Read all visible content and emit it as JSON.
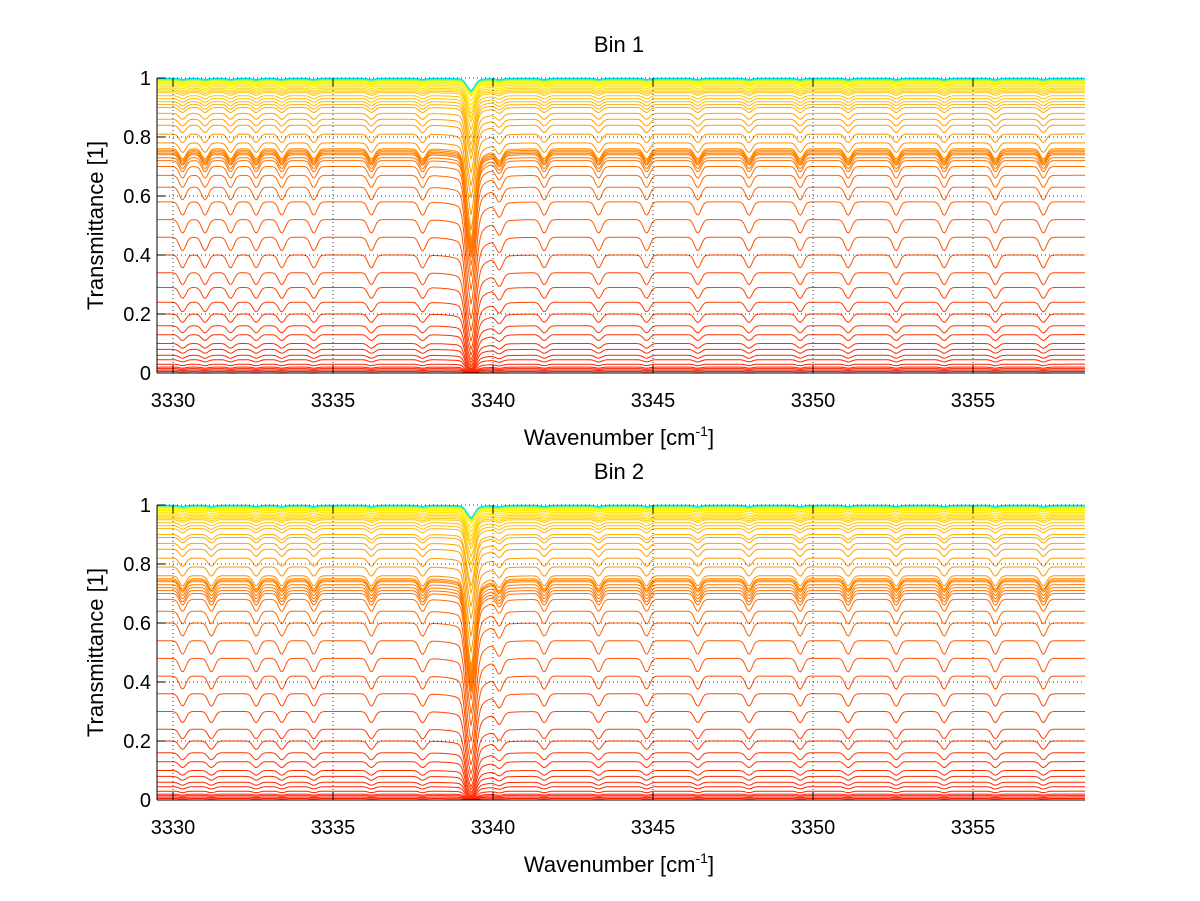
{
  "chart_data": [
    {
      "type": "line",
      "title": "Bin 1",
      "xlabel": "Wavenumber [cm",
      "xlabel_sup": "-1",
      "xlabel_suffix": "]",
      "ylabel": "Transmittance [1]",
      "xlim": [
        3329.5,
        3358.5
      ],
      "ylim": [
        0,
        1
      ],
      "xticks": [
        3330,
        3335,
        3340,
        3345,
        3350,
        3355
      ],
      "xtick_labels": [
        "3330",
        "3335",
        "3340",
        "3345",
        "3350",
        "3355"
      ],
      "yticks": [
        0,
        0.2,
        0.4,
        0.6,
        0.8,
        1
      ],
      "ytick_labels": [
        "0",
        "0.2",
        "0.4",
        "0.6",
        "0.8",
        "1"
      ],
      "grid": true,
      "series_count": 60,
      "baseline_levels": [
        0.005,
        0.01,
        0.015,
        0.02,
        0.03,
        0.045,
        0.06,
        0.08,
        0.1,
        0.13,
        0.16,
        0.2,
        0.24,
        0.29,
        0.34,
        0.4,
        0.46,
        0.52,
        0.58,
        0.63,
        0.67,
        0.7,
        0.72,
        0.73,
        0.74,
        0.745,
        0.75,
        0.755,
        0.76,
        0.78,
        0.81,
        0.84,
        0.86,
        0.88,
        0.9,
        0.91,
        0.92,
        0.93,
        0.94,
        0.95,
        0.955,
        0.96,
        0.965,
        0.97,
        0.975,
        0.98,
        0.983,
        0.986,
        0.989,
        0.991,
        0.993,
        0.995,
        0.996,
        0.997,
        0.998,
        0.999
      ],
      "strong_line_center": 3339.3,
      "weak_line_centers": [
        3330.3,
        3331.0,
        3331.8,
        3332.6,
        3333.4,
        3334.4,
        3336.2,
        3337.8,
        3340.2,
        3341.6,
        3343.3,
        3344.8,
        3346.4,
        3348.0,
        3349.6,
        3351.1,
        3352.6,
        3354.1,
        3355.7,
        3357.2
      ],
      "color_scale": [
        "#ff1a00",
        "#ff6a00",
        "#ff9a00",
        "#ffd000",
        "#ffff00",
        "#00e0ff"
      ]
    },
    {
      "type": "line",
      "title": "Bin 2",
      "xlabel": "Wavenumber [cm",
      "xlabel_sup": "-1",
      "xlabel_suffix": "]",
      "ylabel": "Transmittance [1]",
      "xlim": [
        3329.5,
        3358.5
      ],
      "ylim": [
        0,
        1
      ],
      "xticks": [
        3330,
        3335,
        3340,
        3345,
        3350,
        3355
      ],
      "xtick_labels": [
        "3330",
        "3335",
        "3340",
        "3345",
        "3350",
        "3355"
      ],
      "yticks": [
        0,
        0.2,
        0.4,
        0.6,
        0.8,
        1
      ],
      "ytick_labels": [
        "0",
        "0.2",
        "0.4",
        "0.6",
        "0.8",
        "1"
      ],
      "grid": true,
      "series_count": 60,
      "baseline_levels": [
        0.005,
        0.01,
        0.015,
        0.02,
        0.03,
        0.045,
        0.06,
        0.08,
        0.1,
        0.13,
        0.16,
        0.2,
        0.24,
        0.3,
        0.36,
        0.42,
        0.48,
        0.54,
        0.6,
        0.64,
        0.68,
        0.7,
        0.71,
        0.72,
        0.73,
        0.74,
        0.745,
        0.75,
        0.76,
        0.79,
        0.82,
        0.85,
        0.87,
        0.89,
        0.9,
        0.92,
        0.93,
        0.94,
        0.95,
        0.955,
        0.96,
        0.965,
        0.97,
        0.975,
        0.98,
        0.983,
        0.986,
        0.989,
        0.991,
        0.993,
        0.995,
        0.996,
        0.997,
        0.998,
        0.999
      ],
      "strong_line_center": 3339.3,
      "weak_line_centers": [
        3330.3,
        3331.2,
        3332.6,
        3333.4,
        3334.4,
        3336.2,
        3337.8,
        3340.2,
        3341.6,
        3343.3,
        3344.8,
        3346.4,
        3348.0,
        3349.6,
        3351.1,
        3352.6,
        3354.1,
        3355.7,
        3357.2
      ],
      "color_scale": [
        "#ff1a00",
        "#ff6a00",
        "#ff9a00",
        "#ffd000",
        "#ffff00",
        "#00e0ff"
      ]
    }
  ]
}
